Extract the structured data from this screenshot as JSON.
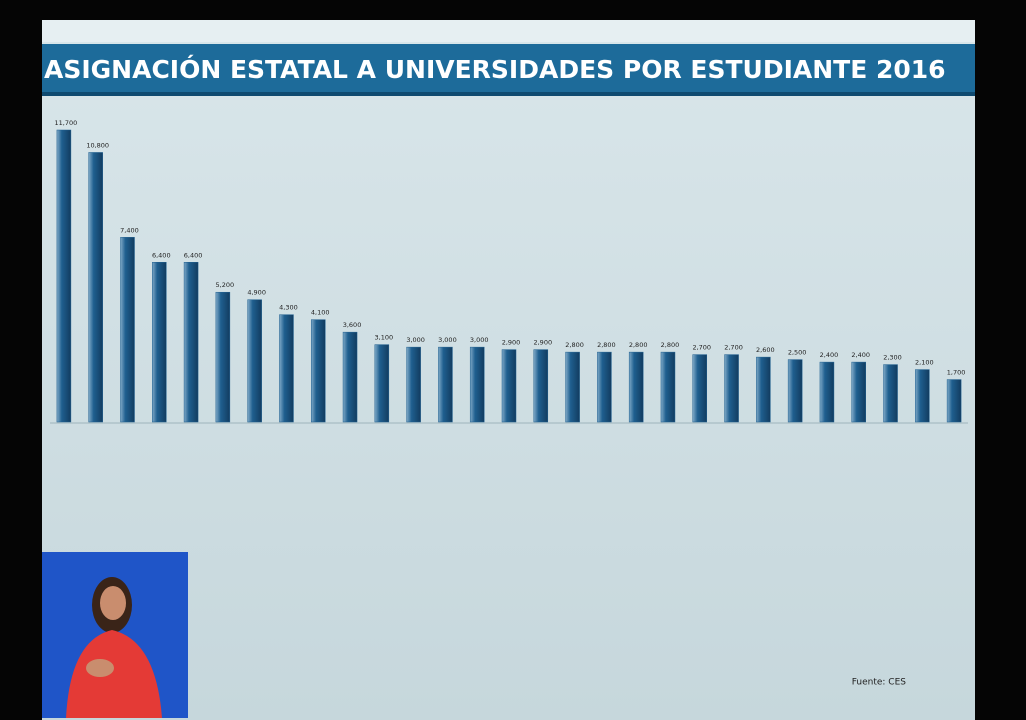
{
  "chart_data": {
    "type": "bar",
    "title": "ASIGNACIÓN ESTATAL A UNIVERSIDADES POR ESTUDIANTE 2016",
    "source": "Fuente: CES",
    "categories": [
      null,
      null,
      null,
      null,
      null,
      null,
      null,
      null,
      null,
      null,
      null,
      null,
      null,
      null,
      null,
      null,
      null,
      null,
      null,
      null,
      null,
      null,
      null,
      null,
      null,
      null,
      null,
      null,
      null
    ],
    "values": [
      11700,
      10800,
      7400,
      6400,
      6400,
      5200,
      4900,
      4300,
      4100,
      3600,
      3100,
      3000,
      3000,
      3000,
      2900,
      2900,
      2800,
      2800,
      2800,
      2800,
      2700,
      2700,
      2600,
      2500,
      2400,
      2400,
      2300,
      2100,
      1700
    ],
    "value_labels": [
      "11,700",
      "10,800",
      "7,400",
      "6,400",
      "6,400",
      "5,200",
      "4,900",
      "4,300",
      "4,100",
      "3,600",
      "3,100",
      "3,000",
      "3,000",
      "3,000",
      "2,900",
      "2,900",
      "2,800",
      "2,800",
      "2,800",
      "2,800",
      "2,700",
      "2,700",
      "2,600",
      "2,500",
      "2,400",
      "2,400",
      "2,300",
      "2,100",
      "1,700"
    ],
    "color": "#1f5f8f"
  }
}
